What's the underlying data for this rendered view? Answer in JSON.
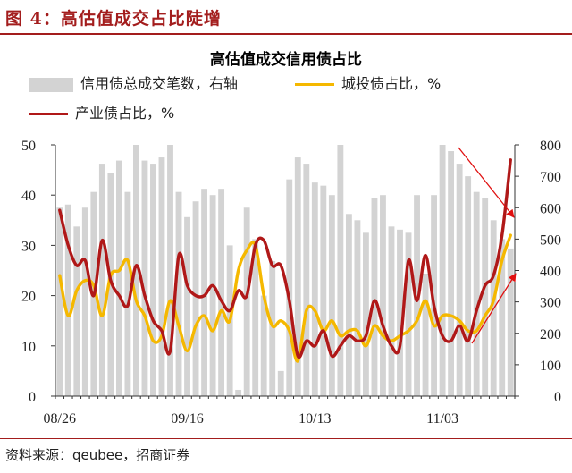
{
  "figure": {
    "title": "图 4：高估值成交占比陡增"
  },
  "source": "资料来源：qeubee，招商证券",
  "colors": {
    "bars": "#d3d3d3",
    "chengtou": "#f5b800",
    "chanye": "#b01818",
    "accent": "#a31d1d",
    "arrow": "#e01010"
  },
  "chart_data": {
    "type": "bar+line",
    "title": "高估值成交信用债占比",
    "x_tick_labels": [
      "08/26",
      "09/16",
      "10/13",
      "11/03"
    ],
    "x_tick_index": [
      0,
      15,
      30,
      45
    ],
    "left_axis": {
      "ylim": [
        0,
        50
      ],
      "ticks": [
        "0",
        "10",
        "20",
        "30",
        "40",
        "50"
      ]
    },
    "right_axis": {
      "ylim": [
        0,
        800
      ],
      "ticks": [
        "0",
        "100",
        "200",
        "300",
        "400",
        "500",
        "600",
        "700",
        "800"
      ]
    },
    "series": [
      {
        "name": "信用债总成交笔数，右轴",
        "kind": "bar",
        "axis": "right",
        "values": [
          600,
          610,
          540,
          600,
          650,
          740,
          710,
          750,
          650,
          800,
          750,
          740,
          760,
          800,
          650,
          570,
          620,
          660,
          640,
          660,
          480,
          20,
          600,
          500,
          320,
          430,
          80,
          690,
          760,
          740,
          680,
          670,
          640,
          800,
          580,
          560,
          520,
          630,
          640,
          540,
          530,
          520,
          640,
          390,
          640,
          800,
          780,
          740,
          700,
          650,
          630,
          560,
          500,
          470
        ]
      },
      {
        "name": "城投债占比，%",
        "kind": "line",
        "axis": "left",
        "values": [
          24,
          16,
          21,
          23,
          22,
          16,
          24,
          25,
          27,
          19,
          16,
          11,
          12,
          19,
          14,
          9,
          14,
          16,
          13,
          17,
          15,
          25,
          29,
          30,
          20,
          14,
          15,
          13,
          7,
          17,
          17,
          13,
          15,
          12,
          13,
          13,
          10,
          14,
          12,
          11,
          12,
          13,
          15,
          19,
          14,
          16,
          16,
          15,
          13,
          13,
          16,
          19,
          27,
          32
        ]
      },
      {
        "name": "产业债占比，%",
        "kind": "line",
        "axis": "left",
        "values": [
          37,
          30,
          26,
          27,
          20,
          31,
          23,
          20,
          18,
          26,
          20,
          15,
          13,
          9,
          28,
          22,
          20,
          20,
          22,
          19,
          17,
          21,
          20,
          30,
          31,
          26,
          26,
          19,
          8,
          11,
          10,
          13,
          8,
          10,
          12,
          11,
          12,
          19,
          14,
          10,
          10,
          27,
          19,
          28,
          18,
          12,
          11,
          14,
          11,
          17,
          22,
          24,
          32,
          47
        ]
      }
    ],
    "grid": false,
    "legend": "top"
  }
}
